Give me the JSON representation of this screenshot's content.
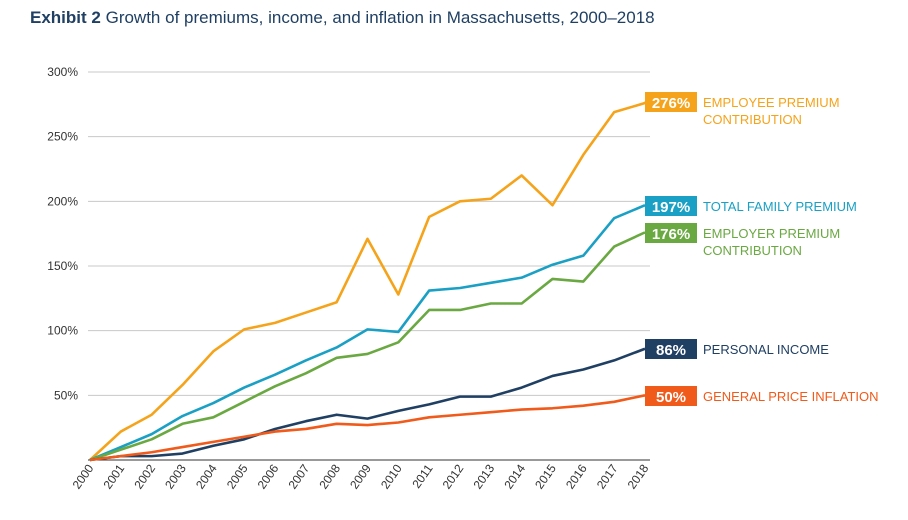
{
  "chart_data": {
    "type": "line",
    "title_bold": "Exhibit 2",
    "title": "Growth of premiums, income, and inflation in Massachusetts, 2000–2018",
    "xlabel": "",
    "ylabel": "",
    "x": [
      "2000",
      "2001",
      "2002",
      "2003",
      "2004",
      "2005",
      "2006",
      "2007",
      "2008",
      "2009",
      "2010",
      "2011",
      "2012",
      "2013",
      "2014",
      "2015",
      "2016",
      "2017",
      "2018"
    ],
    "ylim": [
      0,
      300
    ],
    "yticks": [
      50,
      100,
      150,
      200,
      250,
      300
    ],
    "ytick_labels": [
      "50%",
      "100%",
      "150%",
      "200%",
      "250%",
      "300%"
    ],
    "grid": true,
    "legend": "end-of-line labels (right)",
    "series": [
      {
        "name": "EMPLOYEE PREMIUM CONTRIBUTION",
        "label_lines": [
          "EMPLOYEE PREMIUM",
          "CONTRIBUTION"
        ],
        "end_label": "276%",
        "color": "#f5a31a",
        "values": [
          0,
          22,
          35,
          58,
          84,
          101,
          106,
          114,
          122,
          171,
          128,
          188,
          200,
          202,
          220,
          197,
          236,
          269,
          276
        ]
      },
      {
        "name": "TOTAL FAMILY PREMIUM",
        "label_lines": [
          "TOTAL FAMILY PREMIUM"
        ],
        "end_label": "197%",
        "color": "#1aa0c4",
        "values": [
          0,
          10,
          20,
          34,
          44,
          56,
          66,
          77,
          87,
          101,
          99,
          131,
          133,
          137,
          141,
          151,
          158,
          187,
          197
        ]
      },
      {
        "name": "EMPLOYER PREMIUM CONTRIBUTION",
        "label_lines": [
          "EMPLOYER PREMIUM",
          "CONTRIBUTION"
        ],
        "end_label": "176%",
        "color": "#6aa842",
        "values": [
          0,
          8,
          16,
          28,
          33,
          45,
          57,
          67,
          79,
          82,
          91,
          116,
          116,
          121,
          121,
          140,
          138,
          165,
          176
        ]
      },
      {
        "name": "PERSONAL INCOME",
        "label_lines": [
          "PERSONAL INCOME"
        ],
        "end_label": "86%",
        "color": "#1f3f63",
        "values": [
          0,
          3,
          3,
          5,
          11,
          16,
          24,
          30,
          35,
          32,
          38,
          43,
          49,
          49,
          56,
          65,
          70,
          77,
          86
        ]
      },
      {
        "name": "GENERAL PRICE INFLATION",
        "label_lines": [
          "GENERAL PRICE INFLATION"
        ],
        "end_label": "50%",
        "color": "#f05a1a",
        "values": [
          0,
          3,
          6,
          10,
          14,
          18,
          22,
          24,
          28,
          27,
          29,
          33,
          35,
          37,
          39,
          40,
          42,
          45,
          50
        ]
      }
    ]
  }
}
